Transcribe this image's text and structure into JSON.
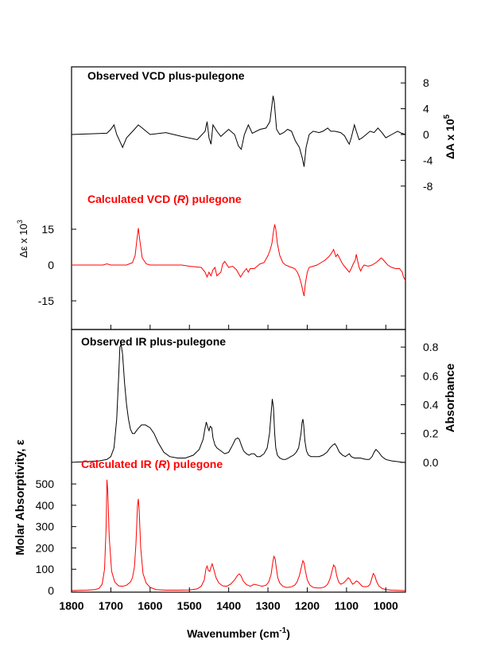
{
  "figure": {
    "xaxis": {
      "label": "Wavenumber (cm",
      "label_sup": "-1",
      "label_close": ")",
      "ticks": [
        "1800",
        "1700",
        "1600",
        "1500",
        "1400",
        "1300",
        "1200",
        "1100",
        "1000"
      ],
      "range": [
        1800,
        950
      ],
      "reversed": true
    },
    "colors": {
      "observed": "#000000",
      "calculated": "#ff0000",
      "axis": "#000000"
    }
  },
  "chart_data": [
    {
      "type": "line",
      "title": "Observed VCD plus-pulegone",
      "ylabel": "ΔA x 10",
      "ylabel_sup": "5",
      "yaxis_side": "right",
      "ylim": [
        -10,
        10
      ],
      "yticks": [
        "8",
        "4",
        "0",
        "-4",
        "-8"
      ],
      "yticks_values": [
        8,
        4,
        0,
        -4,
        -8
      ],
      "color": "#000000",
      "x": [
        1800,
        1710,
        1700,
        1692,
        1685,
        1676,
        1670,
        1660,
        1640,
        1630,
        1620,
        1600,
        1560,
        1520,
        1480,
        1460,
        1455,
        1450,
        1445,
        1440,
        1430,
        1420,
        1400,
        1385,
        1375,
        1368,
        1360,
        1350,
        1340,
        1320,
        1305,
        1295,
        1290,
        1287,
        1284,
        1278,
        1270,
        1260,
        1250,
        1240,
        1230,
        1220,
        1212,
        1208,
        1203,
        1195,
        1185,
        1170,
        1160,
        1148,
        1140,
        1130,
        1115,
        1105,
        1098,
        1093,
        1088,
        1080,
        1075,
        1068,
        1060,
        1050,
        1040,
        1030,
        1020,
        1010,
        1000,
        985,
        970,
        960,
        950
      ],
      "y": [
        0,
        0.2,
        0.8,
        1.5,
        0,
        -1.2,
        -2.0,
        -0.5,
        0.8,
        1.5,
        1.0,
        0,
        0.3,
        -0.3,
        -0.8,
        0.5,
        2.0,
        -0.5,
        -1.5,
        1.5,
        0.5,
        -0.3,
        0.8,
        0,
        -1.8,
        -2.3,
        0,
        1.5,
        0.2,
        0.8,
        1.0,
        2.0,
        4.5,
        6.0,
        5.0,
        0.8,
        0,
        0.3,
        0.8,
        0.5,
        -1.0,
        -2.0,
        -3.8,
        -5.0,
        -2.0,
        0,
        0.5,
        0.3,
        0.5,
        1.0,
        0.5,
        0.5,
        0.3,
        -0.2,
        -1.0,
        -1.5,
        -0.5,
        1.5,
        0.5,
        -0.8,
        -0.5,
        0,
        0.5,
        0.3,
        1.0,
        0.3,
        -0.5,
        0,
        0.5,
        0.2,
        0
      ]
    },
    {
      "type": "line",
      "title": "Calculated VCD (",
      "title_italic": "R",
      "title_close": ") pulegone",
      "ylabel": "Δε x 10",
      "ylabel_sup": "3",
      "yaxis_side": "left",
      "ylim": [
        -25,
        25
      ],
      "yticks": [
        "15",
        "0",
        "-15"
      ],
      "yticks_values": [
        15,
        0,
        -15
      ],
      "color": "#ff0000",
      "x": [
        1800,
        1720,
        1710,
        1700,
        1660,
        1645,
        1638,
        1634,
        1630,
        1626,
        1620,
        1610,
        1600,
        1520,
        1500,
        1470,
        1460,
        1455,
        1450,
        1445,
        1440,
        1435,
        1430,
        1420,
        1415,
        1410,
        1400,
        1390,
        1380,
        1375,
        1370,
        1362,
        1355,
        1350,
        1345,
        1335,
        1320,
        1310,
        1300,
        1295,
        1290,
        1286,
        1283,
        1280,
        1276,
        1270,
        1262,
        1255,
        1248,
        1240,
        1232,
        1225,
        1220,
        1215,
        1211,
        1208,
        1205,
        1200,
        1195,
        1185,
        1175,
        1165,
        1155,
        1145,
        1138,
        1133,
        1130,
        1127,
        1123,
        1118,
        1112,
        1108,
        1103,
        1098,
        1093,
        1088,
        1083,
        1078,
        1075,
        1072,
        1068,
        1064,
        1060,
        1055,
        1045,
        1035,
        1025,
        1018,
        1012,
        1008,
        1003,
        995,
        985,
        975,
        965,
        958,
        955,
        950
      ],
      "y": [
        0,
        0,
        0.5,
        0,
        0,
        1,
        4,
        10,
        15.5,
        10,
        3,
        0.5,
        0,
        0,
        -0.5,
        -1,
        -3,
        -5,
        -3,
        -4.5,
        -2,
        -1,
        -4.5,
        -3,
        0.5,
        1.5,
        -1,
        -0.5,
        -2,
        -3.5,
        -5,
        -3,
        -1.5,
        -3,
        -1.5,
        -1.5,
        0.5,
        1,
        4,
        6,
        9,
        14,
        17,
        15,
        9,
        4,
        1,
        0,
        -0.5,
        -1,
        -1.5,
        -3,
        -5,
        -8,
        -11,
        -13,
        -8,
        -3,
        -1,
        -0.5,
        0,
        1,
        2,
        3.5,
        5,
        6.5,
        5,
        3.5,
        4.5,
        3,
        1,
        0,
        -1,
        -2,
        -3,
        -1.5,
        0.5,
        2,
        4.5,
        2,
        -1,
        -2.5,
        -1,
        0,
        -0.5,
        0,
        1,
        2,
        3,
        2.5,
        1.5,
        0,
        -1,
        -1.5,
        -1.5,
        -3,
        -5,
        -6.5
      ]
    },
    {
      "type": "line",
      "title": "Observed IR plus-pulegone",
      "ylabel": "Absorbance",
      "yaxis_side": "right",
      "ylim": [
        -0.05,
        0.9
      ],
      "yticks": [
        "0.8",
        "0.6",
        "0.4",
        "0.2",
        "0.0"
      ],
      "yticks_values": [
        0.8,
        0.6,
        0.4,
        0.2,
        0.0
      ],
      "color": "#000000",
      "x": [
        1800,
        1760,
        1730,
        1710,
        1700,
        1692,
        1685,
        1680,
        1677,
        1674,
        1670,
        1665,
        1660,
        1655,
        1650,
        1645,
        1640,
        1632,
        1622,
        1612,
        1600,
        1590,
        1580,
        1565,
        1550,
        1530,
        1510,
        1490,
        1475,
        1465,
        1460,
        1457,
        1453,
        1450,
        1447,
        1443,
        1440,
        1435,
        1430,
        1420,
        1410,
        1400,
        1390,
        1383,
        1377,
        1373,
        1368,
        1362,
        1355,
        1348,
        1342,
        1335,
        1328,
        1320,
        1310,
        1302,
        1296,
        1292,
        1289,
        1286,
        1283,
        1280,
        1276,
        1270,
        1262,
        1255,
        1248,
        1242,
        1235,
        1228,
        1222,
        1216,
        1213,
        1211,
        1209,
        1206,
        1202,
        1197,
        1190,
        1180,
        1170,
        1160,
        1150,
        1142,
        1135,
        1130,
        1125,
        1118,
        1110,
        1103,
        1098,
        1093,
        1088,
        1080,
        1072,
        1065,
        1058,
        1050,
        1042,
        1035,
        1030,
        1025,
        1018,
        1010,
        1000,
        985,
        970,
        958,
        950
      ],
      "y": [
        0,
        0.005,
        0.01,
        0.02,
        0.04,
        0.1,
        0.3,
        0.6,
        0.8,
        0.82,
        0.75,
        0.55,
        0.4,
        0.3,
        0.23,
        0.2,
        0.2,
        0.23,
        0.26,
        0.26,
        0.24,
        0.2,
        0.14,
        0.07,
        0.04,
        0.03,
        0.03,
        0.05,
        0.09,
        0.16,
        0.24,
        0.28,
        0.24,
        0.22,
        0.25,
        0.24,
        0.17,
        0.12,
        0.1,
        0.08,
        0.06,
        0.07,
        0.12,
        0.16,
        0.17,
        0.16,
        0.12,
        0.08,
        0.06,
        0.05,
        0.06,
        0.06,
        0.04,
        0.04,
        0.06,
        0.1,
        0.2,
        0.34,
        0.44,
        0.38,
        0.2,
        0.1,
        0.05,
        0.03,
        0.02,
        0.02,
        0.03,
        0.04,
        0.05,
        0.07,
        0.1,
        0.2,
        0.28,
        0.3,
        0.26,
        0.15,
        0.08,
        0.05,
        0.04,
        0.04,
        0.04,
        0.05,
        0.07,
        0.1,
        0.12,
        0.13,
        0.11,
        0.07,
        0.05,
        0.04,
        0.05,
        0.06,
        0.04,
        0.03,
        0.03,
        0.03,
        0.025,
        0.02,
        0.02,
        0.04,
        0.07,
        0.09,
        0.07,
        0.04,
        0.02,
        0.01,
        0.005,
        0,
        0
      ]
    },
    {
      "type": "line",
      "title": "Calculated IR (",
      "title_italic": "R",
      "title_close": ") pulegone",
      "ylabel": "Molar Absorptivity, ε",
      "yaxis_side": "left",
      "ylim": [
        0,
        560
      ],
      "yticks": [
        "500",
        "400",
        "300",
        "200",
        "100",
        "0"
      ],
      "yticks_values": [
        500,
        400,
        300,
        200,
        100,
        0
      ],
      "color": "#ff0000",
      "x": [
        1800,
        1760,
        1740,
        1730,
        1722,
        1716,
        1712,
        1710,
        1708,
        1704,
        1698,
        1690,
        1680,
        1670,
        1660,
        1650,
        1645,
        1640,
        1636,
        1632,
        1630,
        1628,
        1624,
        1618,
        1610,
        1600,
        1585,
        1560,
        1530,
        1500,
        1480,
        1470,
        1462,
        1458,
        1455,
        1452,
        1448,
        1445,
        1442,
        1438,
        1432,
        1425,
        1415,
        1405,
        1395,
        1385,
        1378,
        1373,
        1369,
        1363,
        1355,
        1345,
        1335,
        1325,
        1315,
        1305,
        1298,
        1292,
        1288,
        1285,
        1282,
        1279,
        1275,
        1270,
        1262,
        1255,
        1248,
        1240,
        1232,
        1226,
        1220,
        1215,
        1211,
        1208,
        1205,
        1200,
        1193,
        1185,
        1175,
        1165,
        1155,
        1148,
        1142,
        1137,
        1133,
        1129,
        1125,
        1120,
        1115,
        1108,
        1100,
        1096,
        1092,
        1088,
        1084,
        1080,
        1075,
        1070,
        1065,
        1060,
        1052,
        1045,
        1040,
        1036,
        1032,
        1028,
        1024,
        1018,
        1010,
        1000,
        985,
        970,
        955,
        950
      ],
      "y": [
        0,
        2,
        5,
        10,
        30,
        100,
        300,
        520,
        470,
        250,
        90,
        40,
        22,
        20,
        25,
        40,
        60,
        110,
        220,
        400,
        430,
        380,
        200,
        80,
        35,
        15,
        5,
        2,
        2,
        3,
        8,
        20,
        50,
        100,
        115,
        95,
        90,
        110,
        125,
        100,
        60,
        35,
        22,
        20,
        30,
        50,
        70,
        78,
        70,
        45,
        28,
        20,
        30,
        25,
        20,
        25,
        40,
        75,
        130,
        160,
        150,
        110,
        60,
        35,
        20,
        15,
        15,
        18,
        25,
        40,
        70,
        110,
        140,
        130,
        95,
        50,
        25,
        15,
        12,
        12,
        18,
        30,
        55,
        90,
        120,
        110,
        70,
        40,
        30,
        35,
        50,
        60,
        55,
        40,
        30,
        35,
        45,
        40,
        30,
        20,
        18,
        20,
        30,
        55,
        80,
        70,
        45,
        22,
        10,
        5,
        2,
        1,
        0,
        0
      ]
    }
  ]
}
